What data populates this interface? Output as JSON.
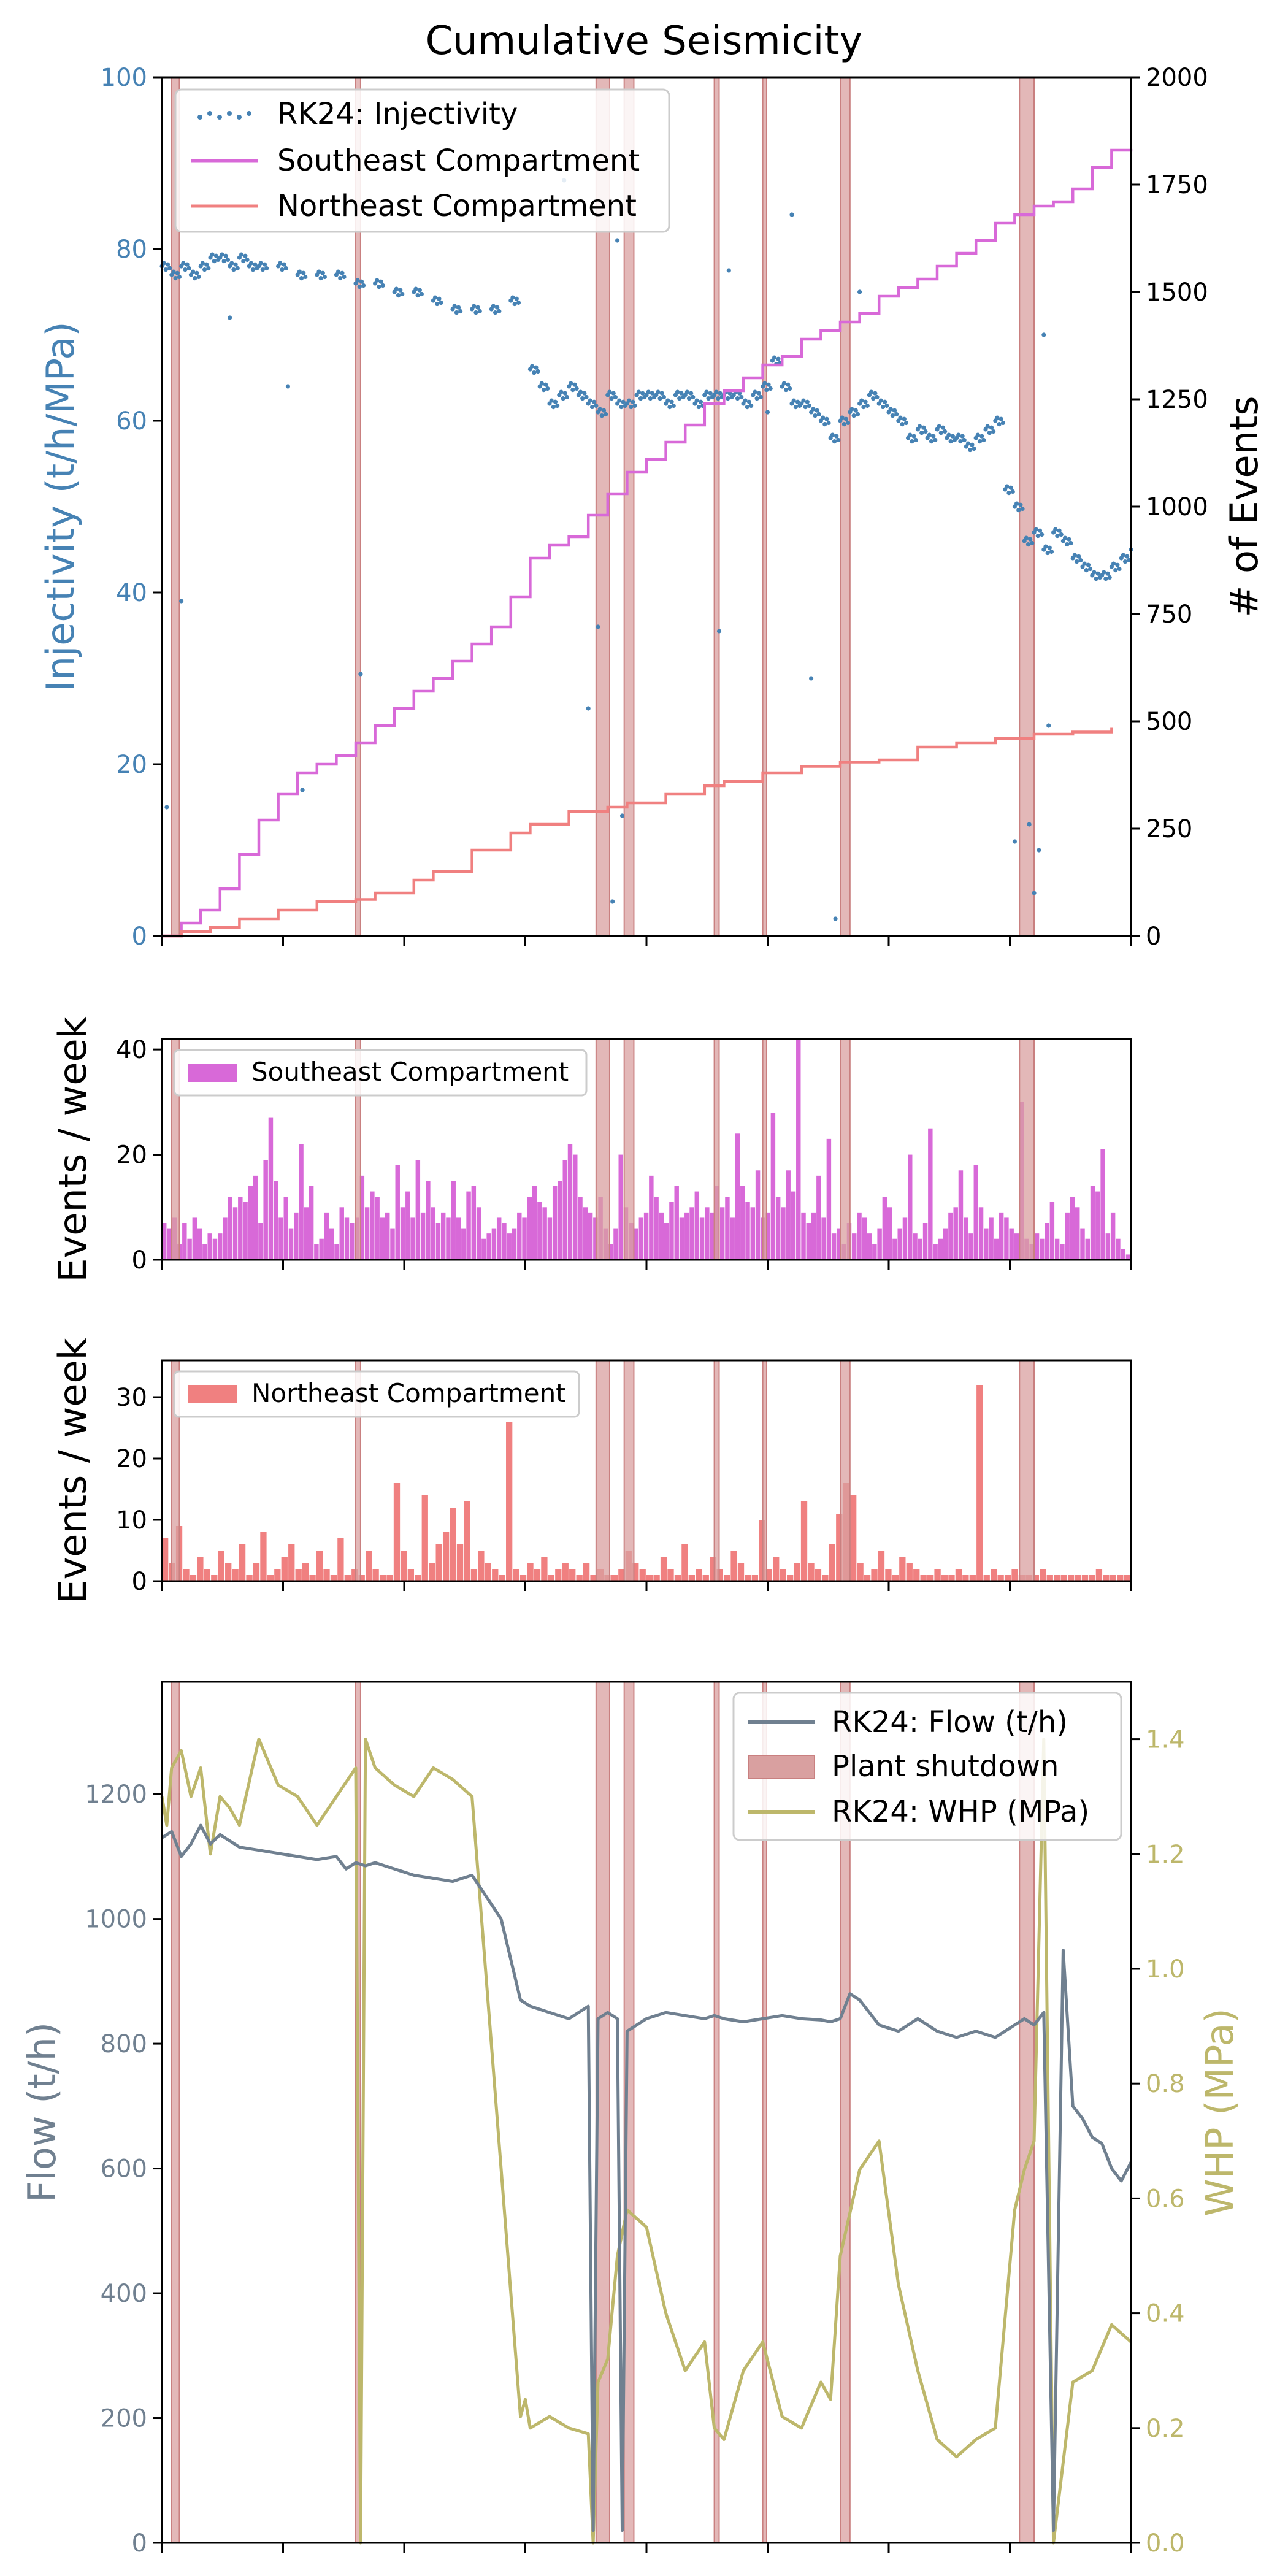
{
  "chart_data": [
    {
      "type": "line",
      "title": "Cumulative Seismicity",
      "ylabel_left": "Injectivity (t/h/MPa)",
      "ylabel_right": "# of Events",
      "ylim_left": [
        0,
        100
      ],
      "ylim_right": [
        0,
        2000
      ],
      "yticks_left": [
        0,
        20,
        40,
        60,
        80,
        100
      ],
      "yticks_right": [
        0,
        250,
        500,
        750,
        1000,
        1250,
        1500,
        1750,
        2000
      ],
      "legend_position": "top-left",
      "series": [
        {
          "name": "RK24: Injectivity",
          "kind": "scatter",
          "axis": "left",
          "x": [
            0.0,
            0.01,
            0.02,
            0.03,
            0.04,
            0.05,
            0.06,
            0.07,
            0.08,
            0.09,
            0.1,
            0.12,
            0.14,
            0.16,
            0.18,
            0.2,
            0.22,
            0.24,
            0.26,
            0.28,
            0.3,
            0.32,
            0.34,
            0.36,
            0.38,
            0.39,
            0.4,
            0.41,
            0.42,
            0.43,
            0.44,
            0.45,
            0.46,
            0.47,
            0.48,
            0.49,
            0.5,
            0.51,
            0.52,
            0.53,
            0.54,
            0.55,
            0.56,
            0.57,
            0.58,
            0.59,
            0.6,
            0.61,
            0.62,
            0.63,
            0.64,
            0.65,
            0.66,
            0.67,
            0.68,
            0.69,
            0.7,
            0.71,
            0.72,
            0.73,
            0.74,
            0.75,
            0.76,
            0.77,
            0.78,
            0.79,
            0.8,
            0.81,
            0.82,
            0.83,
            0.84,
            0.85,
            0.86,
            0.87,
            0.88,
            0.89,
            0.9,
            0.91,
            0.92,
            0.93,
            0.94,
            0.95,
            0.96,
            0.97,
            0.98,
            0.99,
            1.0
          ],
          "y": [
            78,
            77,
            78,
            77,
            78,
            79,
            79,
            78,
            79,
            78,
            78,
            78,
            77,
            77,
            77,
            76,
            76,
            75,
            75,
            74,
            73,
            73,
            73,
            74,
            66,
            64,
            62,
            63,
            64,
            63,
            62,
            61,
            63,
            62,
            62,
            63,
            63,
            63,
            62,
            63,
            63,
            62,
            63,
            63,
            63,
            63,
            62,
            63,
            64,
            67,
            64,
            62,
            62,
            61,
            60,
            58,
            60,
            61,
            62,
            63,
            62,
            61,
            60,
            58,
            59,
            58,
            59,
            58,
            58,
            57,
            58,
            59,
            60,
            52,
            50,
            46,
            47,
            45,
            47,
            46,
            44,
            43,
            42,
            42,
            43,
            44,
            45
          ],
          "outliers_x": [
            0.005,
            0.02,
            0.07,
            0.13,
            0.145,
            0.205,
            0.415,
            0.44,
            0.45,
            0.465,
            0.47,
            0.475,
            0.575,
            0.585,
            0.625,
            0.65,
            0.67,
            0.695,
            0.72,
            0.88,
            0.895,
            0.9,
            0.905,
            0.91,
            0.915
          ],
          "outliers_y": [
            15,
            39,
            72,
            64,
            17,
            30.5,
            88,
            26.5,
            36,
            4,
            81,
            14,
            35.5,
            77.5,
            61,
            84,
            30,
            2,
            75,
            11,
            13,
            5,
            10,
            70,
            24.5
          ]
        },
        {
          "name": "Southeast Compartment",
          "kind": "line",
          "axis": "right",
          "x": [
            0.0,
            0.02,
            0.04,
            0.06,
            0.08,
            0.1,
            0.12,
            0.14,
            0.16,
            0.18,
            0.2,
            0.22,
            0.24,
            0.26,
            0.28,
            0.3,
            0.32,
            0.34,
            0.36,
            0.38,
            0.4,
            0.42,
            0.44,
            0.46,
            0.48,
            0.5,
            0.52,
            0.54,
            0.56,
            0.58,
            0.6,
            0.62,
            0.64,
            0.66,
            0.68,
            0.7,
            0.72,
            0.74,
            0.76,
            0.78,
            0.8,
            0.82,
            0.84,
            0.86,
            0.88,
            0.9,
            0.92,
            0.94,
            0.96,
            0.98,
            1.0
          ],
          "y": [
            0,
            30,
            60,
            110,
            190,
            270,
            330,
            380,
            400,
            420,
            450,
            490,
            530,
            570,
            600,
            640,
            680,
            720,
            790,
            880,
            910,
            930,
            980,
            1030,
            1080,
            1110,
            1150,
            1190,
            1240,
            1270,
            1300,
            1330,
            1350,
            1390,
            1410,
            1430,
            1450,
            1490,
            1510,
            1530,
            1560,
            1590,
            1620,
            1660,
            1680,
            1700,
            1710,
            1740,
            1790,
            1830,
            1833
          ]
        },
        {
          "name": "Northeast Compartment",
          "kind": "line",
          "axis": "right",
          "x": [
            0.0,
            0.02,
            0.05,
            0.08,
            0.12,
            0.16,
            0.2,
            0.22,
            0.26,
            0.28,
            0.32,
            0.36,
            0.38,
            0.42,
            0.46,
            0.48,
            0.52,
            0.56,
            0.58,
            0.62,
            0.66,
            0.7,
            0.74,
            0.78,
            0.82,
            0.86,
            0.9,
            0.94,
            0.98
          ],
          "y": [
            0,
            10,
            20,
            40,
            60,
            80,
            85,
            100,
            130,
            150,
            200,
            240,
            260,
            290,
            300,
            310,
            330,
            350,
            360,
            380,
            395,
            405,
            410,
            440,
            450,
            460,
            470,
            475,
            485
          ]
        }
      ]
    },
    {
      "type": "bar",
      "ylabel": "Events / week",
      "ylim": [
        0,
        42
      ],
      "yticks": [
        0,
        20,
        40
      ],
      "legend_position": "top-left",
      "series": [
        {
          "name": "Southeast Compartment",
          "values": [
            7,
            6,
            8,
            3,
            7,
            4,
            8,
            6,
            3,
            5,
            4,
            5,
            8,
            12,
            10,
            12,
            11,
            14,
            16,
            7,
            19,
            27,
            15,
            8,
            12,
            6,
            9,
            22,
            10,
            14,
            3,
            4,
            9,
            6,
            3,
            10,
            8,
            7,
            8,
            16,
            10,
            13,
            12,
            8,
            9,
            6,
            18,
            10,
            13,
            8,
            19,
            9,
            15,
            10,
            7,
            9,
            8,
            15,
            8,
            6,
            13,
            14,
            10,
            4,
            5,
            6,
            8,
            7,
            5,
            6,
            9,
            8,
            12,
            14,
            11,
            10,
            8,
            14,
            15,
            19,
            22,
            20,
            12,
            10,
            9,
            8,
            12,
            6,
            3,
            6,
            20,
            10,
            7,
            6,
            8,
            9,
            16,
            12,
            9,
            7,
            11,
            14,
            8,
            9,
            10,
            13,
            8,
            10,
            9,
            14,
            10,
            12,
            8,
            24,
            14,
            11,
            10,
            17,
            8,
            9,
            28,
            12,
            10,
            17,
            13,
            42,
            9,
            7,
            9,
            16,
            8,
            23,
            5,
            6,
            3,
            7,
            5,
            9,
            8,
            5,
            3,
            6,
            12,
            10,
            4,
            6,
            8,
            20,
            5,
            4,
            7,
            25,
            3,
            4,
            6,
            9,
            10,
            17,
            8,
            5,
            18,
            10,
            6,
            8,
            4,
            9,
            8,
            6,
            5,
            30,
            4,
            3,
            5,
            4,
            7,
            11,
            4,
            3,
            9,
            12,
            10,
            6,
            4,
            14,
            13,
            21,
            5,
            9,
            4,
            2,
            1
          ],
          "color": "#d869d8"
        }
      ]
    },
    {
      "type": "bar",
      "ylabel": "Events / week",
      "ylim": [
        0,
        36
      ],
      "yticks": [
        0,
        10,
        20,
        30
      ],
      "legend_position": "top-left",
      "series": [
        {
          "name": "Northeast Compartment",
          "values": [
            7,
            3,
            9,
            2,
            1,
            4,
            2,
            1,
            5,
            3,
            2,
            6,
            1,
            3,
            8,
            1,
            2,
            4,
            6,
            2,
            3,
            1,
            5,
            2,
            1,
            7,
            1,
            2,
            1,
            5,
            2,
            1,
            1,
            16,
            5,
            2,
            1,
            14,
            3,
            6,
            8,
            12,
            6,
            13,
            2,
            5,
            3,
            2,
            1,
            26,
            2,
            1,
            3,
            2,
            4,
            1,
            2,
            3,
            2,
            1,
            3,
            1,
            2,
            1,
            1,
            2,
            5,
            3,
            2,
            1,
            1,
            4,
            2,
            1,
            6,
            1,
            2,
            1,
            4,
            2,
            1,
            5,
            3,
            1,
            1,
            10,
            2,
            4,
            2,
            1,
            3,
            13,
            3,
            2,
            1,
            6,
            11,
            16,
            14,
            3,
            1,
            2,
            5,
            2,
            1,
            4,
            3,
            2,
            1,
            1,
            2,
            1,
            1,
            2,
            1,
            1,
            32,
            1,
            2,
            1,
            1,
            2,
            1,
            1,
            1,
            2,
            1,
            1,
            1,
            1,
            1,
            1,
            1,
            2,
            1,
            1,
            1,
            1
          ],
          "color": "#f08080"
        }
      ]
    },
    {
      "type": "line",
      "ylabel_left": "Flow (t/h)",
      "ylabel_right": "WHP (MPa)",
      "ylim_left": [
        0,
        1380
      ],
      "ylim_right": [
        0,
        1.5
      ],
      "yticks_left": [
        0,
        200,
        400,
        600,
        800,
        1000,
        1200
      ],
      "yticks_right": [
        0.0,
        0.2,
        0.4,
        0.6,
        0.8,
        1.0,
        1.2,
        1.4
      ],
      "legend_position": "top-right",
      "legend_entries": [
        "RK24: Flow (t/h)",
        "Plant shutdown",
        "RK24: WHP (MPa)"
      ],
      "series": [
        {
          "name": "RK24: Flow (t/h)",
          "axis": "left",
          "x": [
            0.0,
            0.01,
            0.02,
            0.03,
            0.04,
            0.05,
            0.06,
            0.08,
            0.1,
            0.12,
            0.14,
            0.16,
            0.18,
            0.19,
            0.2,
            0.21,
            0.22,
            0.24,
            0.26,
            0.28,
            0.3,
            0.32,
            0.35,
            0.37,
            0.38,
            0.4,
            0.42,
            0.44,
            0.445,
            0.45,
            0.46,
            0.47,
            0.475,
            0.48,
            0.49,
            0.5,
            0.52,
            0.54,
            0.56,
            0.57,
            0.58,
            0.6,
            0.62,
            0.64,
            0.66,
            0.68,
            0.69,
            0.7,
            0.71,
            0.72,
            0.74,
            0.76,
            0.78,
            0.8,
            0.82,
            0.84,
            0.86,
            0.88,
            0.89,
            0.9,
            0.91,
            0.92,
            0.93,
            0.94,
            0.95,
            0.96,
            0.97,
            0.98,
            0.99,
            1.0
          ],
          "y": [
            1130,
            1140,
            1100,
            1120,
            1150,
            1120,
            1135,
            1115,
            1110,
            1105,
            1100,
            1095,
            1100,
            1080,
            1090,
            1085,
            1090,
            1080,
            1070,
            1065,
            1060,
            1070,
            1000,
            870,
            860,
            850,
            840,
            860,
            20,
            840,
            850,
            840,
            20,
            820,
            830,
            840,
            850,
            845,
            840,
            845,
            840,
            835,
            840,
            845,
            840,
            838,
            835,
            840,
            880,
            870,
            830,
            820,
            840,
            820,
            810,
            820,
            810,
            830,
            840,
            830,
            850,
            20,
            950,
            700,
            680,
            650,
            640,
            600,
            580,
            610
          ]
        },
        {
          "name": "RK24: WHP (MPa)",
          "axis": "right",
          "x": [
            0.0,
            0.005,
            0.01,
            0.02,
            0.03,
            0.04,
            0.05,
            0.06,
            0.07,
            0.08,
            0.1,
            0.12,
            0.14,
            0.16,
            0.18,
            0.2,
            0.205,
            0.21,
            0.22,
            0.24,
            0.26,
            0.28,
            0.3,
            0.32,
            0.37,
            0.375,
            0.38,
            0.4,
            0.42,
            0.44,
            0.445,
            0.45,
            0.46,
            0.47,
            0.48,
            0.5,
            0.52,
            0.54,
            0.56,
            0.57,
            0.58,
            0.6,
            0.62,
            0.64,
            0.66,
            0.68,
            0.69,
            0.7,
            0.72,
            0.74,
            0.76,
            0.78,
            0.8,
            0.82,
            0.84,
            0.86,
            0.88,
            0.89,
            0.9,
            0.91,
            0.92,
            0.94,
            0.96,
            0.98,
            1.0
          ],
          "y": [
            1.3,
            1.25,
            1.35,
            1.38,
            1.3,
            1.35,
            1.2,
            1.3,
            1.28,
            1.25,
            1.4,
            1.32,
            1.3,
            1.25,
            1.3,
            1.35,
            0.0,
            1.4,
            1.35,
            1.32,
            1.3,
            1.35,
            1.33,
            1.3,
            0.22,
            0.25,
            0.2,
            0.22,
            0.2,
            0.19,
            0.0,
            0.28,
            0.32,
            0.5,
            0.58,
            0.55,
            0.4,
            0.3,
            0.35,
            0.2,
            0.18,
            0.3,
            0.35,
            0.22,
            0.2,
            0.28,
            0.25,
            0.5,
            0.65,
            0.7,
            0.45,
            0.3,
            0.18,
            0.15,
            0.18,
            0.2,
            0.58,
            0.65,
            0.7,
            1.4,
            0.0,
            0.28,
            0.3,
            0.38,
            0.35
          ]
        }
      ]
    }
  ],
  "shutdowns": [
    {
      "start": 0.01,
      "end": 0.018
    },
    {
      "start": 0.2,
      "end": 0.205
    },
    {
      "start": 0.448,
      "end": 0.462
    },
    {
      "start": 0.477,
      "end": 0.487
    },
    {
      "start": 0.57,
      "end": 0.575
    },
    {
      "start": 0.62,
      "end": 0.624
    },
    {
      "start": 0.7,
      "end": 0.71
    },
    {
      "start": 0.885,
      "end": 0.9
    }
  ],
  "shutdown_color": "#d9a0a0",
  "colors": {
    "injectivity": "#4682b4",
    "southeast": "#d869d8",
    "northeast": "#f08080",
    "flow": "#708090",
    "whp": "#bdb76b"
  }
}
